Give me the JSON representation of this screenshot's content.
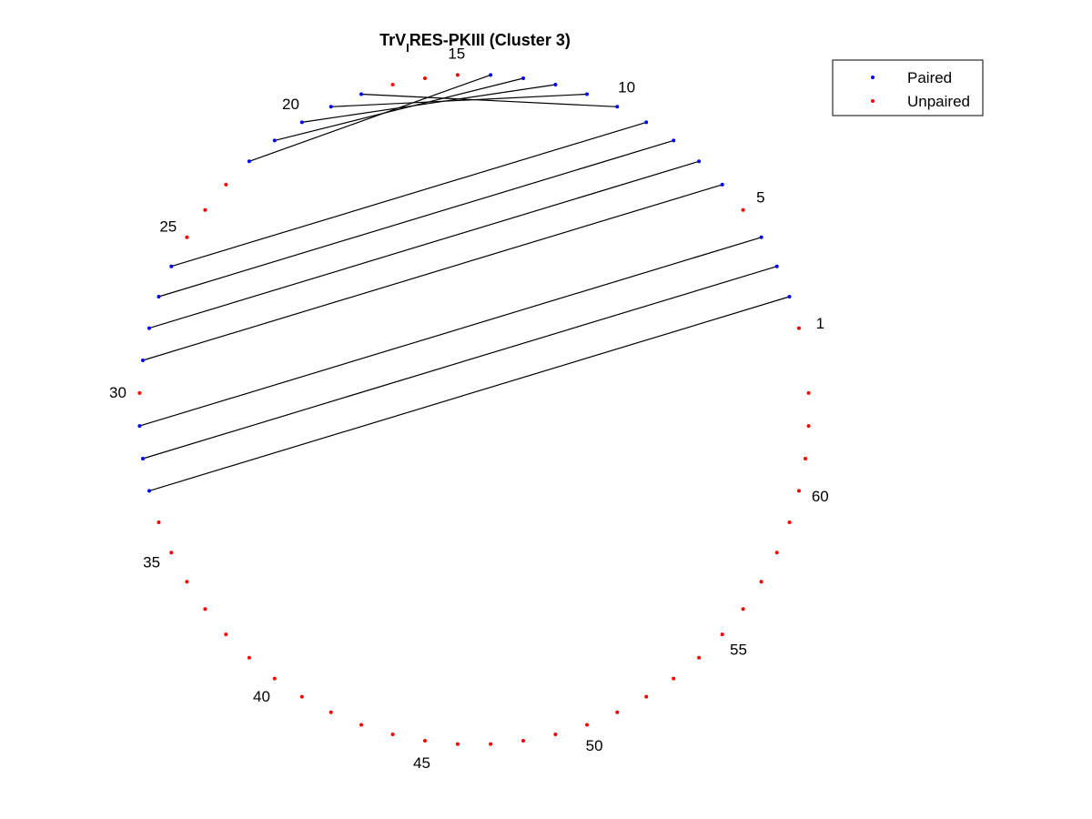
{
  "title": {
    "main": "TrV",
    "subscript": "I",
    "rest": "RES-PKIII (Cluster 3)"
  },
  "legend": {
    "items": [
      {
        "label": "Paired",
        "color": "#0000ff"
      },
      {
        "label": "Unpaired",
        "color": "#ff0000"
      }
    ]
  },
  "colors": {
    "paired": "#0000ff",
    "unpaired": "#ff0000",
    "bond": "#000000"
  },
  "chart_data": {
    "type": "circular-arc-diagram",
    "nucleotide_count": 63,
    "labeled_positions": [
      "1",
      "5",
      "10",
      "15",
      "20",
      "25",
      "30",
      "35",
      "40",
      "45",
      "50",
      "55",
      "60"
    ],
    "pairs": [
      [
        2,
        33
      ],
      [
        3,
        32
      ],
      [
        4,
        31
      ],
      [
        6,
        29
      ],
      [
        7,
        28
      ],
      [
        8,
        27
      ],
      [
        9,
        26
      ],
      [
        10,
        18
      ],
      [
        11,
        19
      ],
      [
        12,
        20
      ],
      [
        13,
        21
      ],
      [
        14,
        22
      ]
    ]
  }
}
